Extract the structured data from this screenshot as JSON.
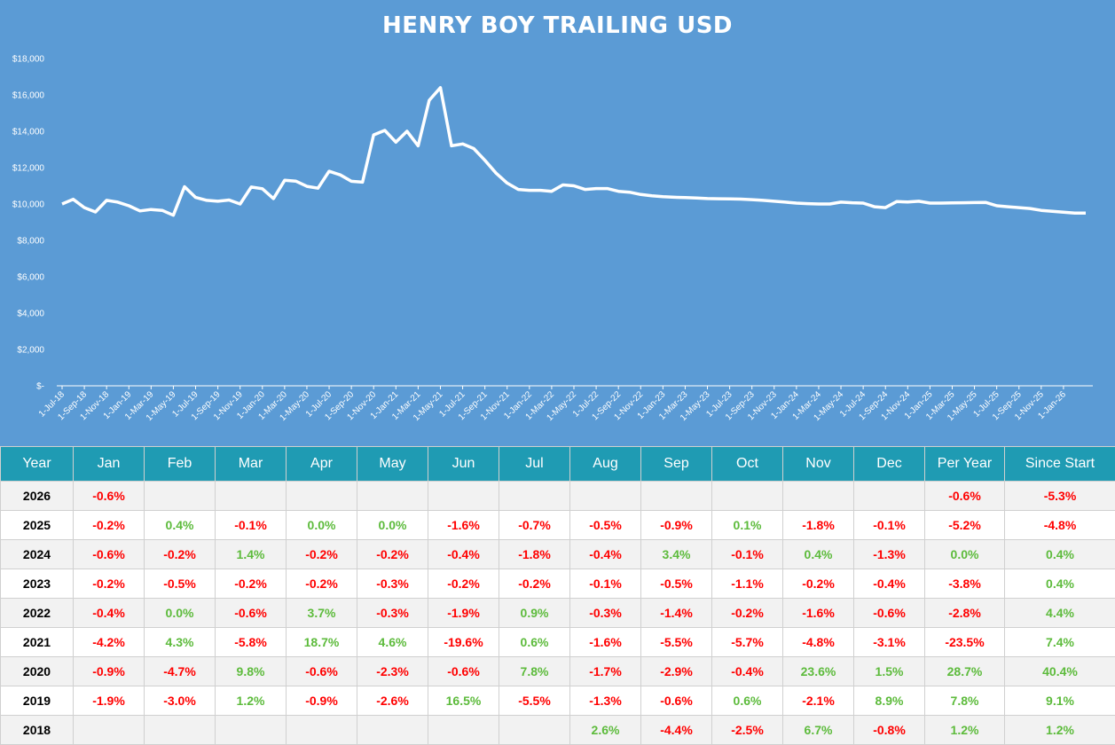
{
  "colors": {
    "background": "#5b9bd5",
    "line": "#ffffff",
    "header": "#1f9bb3",
    "negative": "#ff0000",
    "positive": "#5dbb3c"
  },
  "chart_data": {
    "type": "area",
    "title": "HENRY BOY TRAILING USD",
    "ylim": [
      0,
      18000
    ],
    "yticks": [
      {
        "value": 0,
        "label": "$-"
      },
      {
        "value": 2000,
        "label": "$2,000"
      },
      {
        "value": 4000,
        "label": "$4,000"
      },
      {
        "value": 6000,
        "label": "$6,000"
      },
      {
        "value": 8000,
        "label": "$8,000"
      },
      {
        "value": 10000,
        "label": "$10,000"
      },
      {
        "value": 12000,
        "label": "$12,000"
      },
      {
        "value": 14000,
        "label": "$14,000"
      },
      {
        "value": 16000,
        "label": "$16,000"
      },
      {
        "value": 18000,
        "label": "$18,000"
      }
    ],
    "xtick_labels": [
      "1-Jul-18",
      "1-Sep-18",
      "1-Nov-18",
      "1-Jan-19",
      "1-Mar-19",
      "1-May-19",
      "1-Jul-19",
      "1-Sep-19",
      "1-Nov-19",
      "1-Jan-20",
      "1-Mar-20",
      "1-May-20",
      "1-Jul-20",
      "1-Sep-20",
      "1-Nov-20",
      "1-Jan-21",
      "1-Mar-21",
      "1-May-21",
      "1-Jul-21",
      "1-Sep-21",
      "1-Nov-21",
      "1-Jan-22",
      "1-Mar-22",
      "1-May-22",
      "1-Jul-22",
      "1-Sep-22",
      "1-Nov-22",
      "1-Jan-23",
      "1-Mar-23",
      "1-May-23",
      "1-Jul-23",
      "1-Sep-23",
      "1-Nov-23",
      "1-Jan-24",
      "1-Mar-24",
      "1-May-24",
      "1-Jul-24",
      "1-Sep-24",
      "1-Nov-24",
      "1-Jan-25",
      "1-Mar-25",
      "1-May-25",
      "1-Jul-25",
      "1-Sep-25",
      "1-Nov-25",
      "1-Jan-26"
    ],
    "values": [
      10000,
      10260,
      9800,
      9560,
      10200,
      10100,
      9900,
      9620,
      9700,
      9650,
      9380,
      10950,
      10360,
      10200,
      10150,
      10220,
      10000,
      10930,
      10840,
      10300,
      11300,
      11260,
      10970,
      10870,
      11800,
      11600,
      11250,
      11200,
      13800,
      14050,
      13400,
      14000,
      13200,
      15700,
      16400,
      13200,
      13300,
      13050,
      12400,
      11700,
      11150,
      10800,
      10750,
      10750,
      10700,
      11050,
      11000,
      10800,
      10850,
      10850,
      10700,
      10650,
      10520,
      10450,
      10400,
      10370,
      10350,
      10330,
      10300,
      10290,
      10280,
      10270,
      10240,
      10200,
      10150,
      10100,
      10050,
      10020,
      10000,
      10000,
      10100,
      10070,
      10050,
      9850,
      9800,
      10130,
      10110,
      10150,
      10050,
      10050,
      10060,
      10070,
      10080,
      10090,
      9900,
      9850,
      9800,
      9750,
      9650,
      9600,
      9550,
      9500,
      9500
    ],
    "grid": false,
    "legend": "none"
  },
  "table": {
    "headers": [
      "Year",
      "Jan",
      "Feb",
      "Mar",
      "Apr",
      "May",
      "Jun",
      "Jul",
      "Aug",
      "Sep",
      "Oct",
      "Nov",
      "Dec",
      "Per Year",
      "Since Start"
    ],
    "rows": [
      {
        "year": "2026",
        "cells": [
          "-0.6%",
          "",
          "",
          "",
          "",
          "",
          "",
          "",
          "",
          "",
          "",
          "",
          "-0.6%",
          "-5.3%"
        ]
      },
      {
        "year": "2025",
        "cells": [
          "-0.2%",
          "0.4%",
          "-0.1%",
          "0.0%",
          "0.0%",
          "-1.6%",
          "-0.7%",
          "-0.5%",
          "-0.9%",
          "0.1%",
          "-1.8%",
          "-0.1%",
          "-5.2%",
          "-4.8%"
        ]
      },
      {
        "year": "2024",
        "cells": [
          "-0.6%",
          "-0.2%",
          "1.4%",
          "-0.2%",
          "-0.2%",
          "-0.4%",
          "-1.8%",
          "-0.4%",
          "3.4%",
          "-0.1%",
          "0.4%",
          "-1.3%",
          "0.0%",
          "0.4%"
        ]
      },
      {
        "year": "2023",
        "cells": [
          "-0.2%",
          "-0.5%",
          "-0.2%",
          "-0.2%",
          "-0.3%",
          "-0.2%",
          "-0.2%",
          "-0.1%",
          "-0.5%",
          "-1.1%",
          "-0.2%",
          "-0.4%",
          "-3.8%",
          "0.4%"
        ]
      },
      {
        "year": "2022",
        "cells": [
          "-0.4%",
          "0.0%",
          "-0.6%",
          "3.7%",
          "-0.3%",
          "-1.9%",
          "0.9%",
          "-0.3%",
          "-1.4%",
          "-0.2%",
          "-1.6%",
          "-0.6%",
          "-2.8%",
          "4.4%"
        ]
      },
      {
        "year": "2021",
        "cells": [
          "-4.2%",
          "4.3%",
          "-5.8%",
          "18.7%",
          "4.6%",
          "-19.6%",
          "0.6%",
          "-1.6%",
          "-5.5%",
          "-5.7%",
          "-4.8%",
          "-3.1%",
          "-23.5%",
          "7.4%"
        ]
      },
      {
        "year": "2020",
        "cells": [
          "-0.9%",
          "-4.7%",
          "9.8%",
          "-0.6%",
          "-2.3%",
          "-0.6%",
          "7.8%",
          "-1.7%",
          "-2.9%",
          "-0.4%",
          "23.6%",
          "1.5%",
          "28.7%",
          "40.4%"
        ]
      },
      {
        "year": "2019",
        "cells": [
          "-1.9%",
          "-3.0%",
          "1.2%",
          "-0.9%",
          "-2.6%",
          "16.5%",
          "-5.5%",
          "-1.3%",
          "-0.6%",
          "0.6%",
          "-2.1%",
          "8.9%",
          "7.8%",
          "9.1%"
        ]
      },
      {
        "year": "2018",
        "cells": [
          "",
          "",
          "",
          "",
          "",
          "",
          "",
          "2.6%",
          "-4.4%",
          "-2.5%",
          "6.7%",
          "-0.8%",
          "1.2%",
          "1.2%"
        ]
      }
    ]
  }
}
